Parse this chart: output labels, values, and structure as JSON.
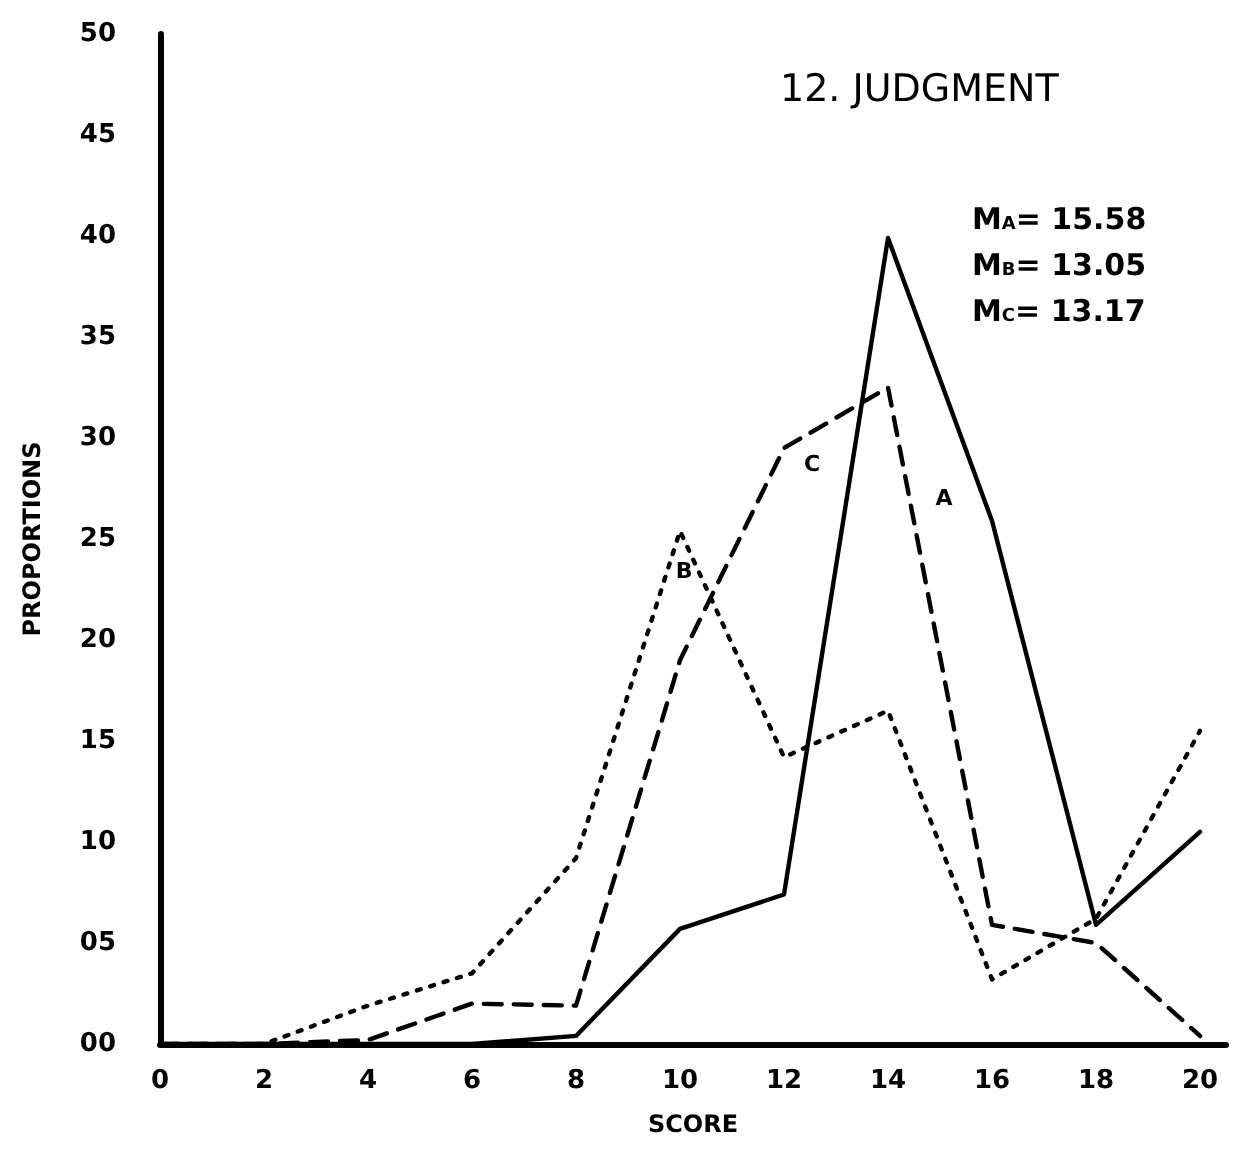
{
  "chart_data": {
    "type": "line",
    "title": "12. JUDGMENT",
    "xlabel": "SCORE",
    "ylabel": "PROPORTIONS",
    "x": [
      0,
      2,
      4,
      6,
      8,
      10,
      12,
      14,
      16,
      18,
      20
    ],
    "series": [
      {
        "name": "A",
        "color": "#000000",
        "line_style": "solid",
        "values": [
          0,
          0,
          0,
          0,
          0.4,
          5.7,
          7.4,
          39.9,
          25.9,
          5.9,
          10.5
        ]
      },
      {
        "name": "B",
        "color": "#000000",
        "line_style": "dotted",
        "values": [
          0,
          0,
          1.9,
          3.5,
          9.2,
          25.4,
          14.2,
          16.5,
          3.2,
          6.2,
          15.5
        ]
      },
      {
        "name": "C",
        "color": "#000000",
        "line_style": "dashed",
        "values": [
          0,
          0,
          0.2,
          2.0,
          1.9,
          19,
          29.5,
          32.5,
          5.9,
          5.0,
          0.4
        ]
      }
    ],
    "annotations": [
      "M$_{A}$= 15.58",
      "M$_{B}$= 13.05",
      "M$_{C}$= 13.17"
    ],
    "xlim": [
      0,
      20.5
    ],
    "xticks": [
      0,
      2,
      4,
      6,
      8,
      10,
      12,
      14,
      16,
      18,
      20
    ],
    "ylim": [
      0,
      50
    ],
    "yticks": [
      {
        "value": 0,
        "label": "00"
      },
      {
        "value": 5,
        "label": "05"
      },
      10,
      15,
      20,
      25,
      30,
      35,
      40,
      45,
      50
    ],
    "grid": false,
    "marker": "none"
  }
}
